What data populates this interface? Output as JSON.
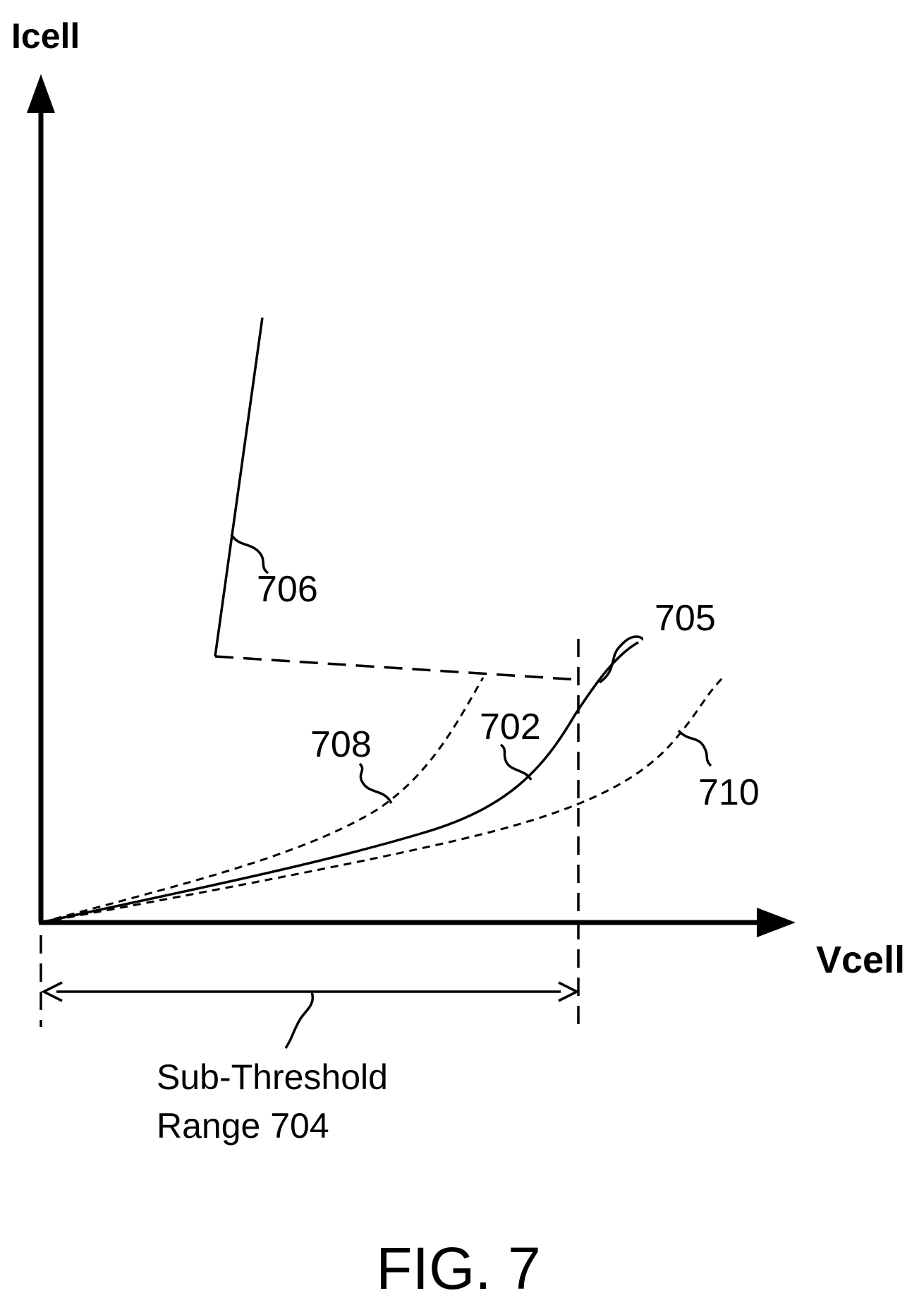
{
  "figure": {
    "y_axis_label": "Icell",
    "x_axis_label": "Vcell",
    "caption": "FIG. 7"
  },
  "curves": {
    "c702": {
      "label": "702",
      "style": "solid"
    },
    "c705": {
      "label": "705"
    },
    "c706": {
      "label": "706",
      "style": "solid"
    },
    "c708": {
      "label": "708",
      "style": "dashed"
    },
    "c710": {
      "label": "710",
      "style": "dashed"
    }
  },
  "range": {
    "line1": "Sub-Threshold",
    "line2": "Range 704"
  },
  "colors": {
    "ink": "#000000",
    "background": "#ffffff"
  }
}
